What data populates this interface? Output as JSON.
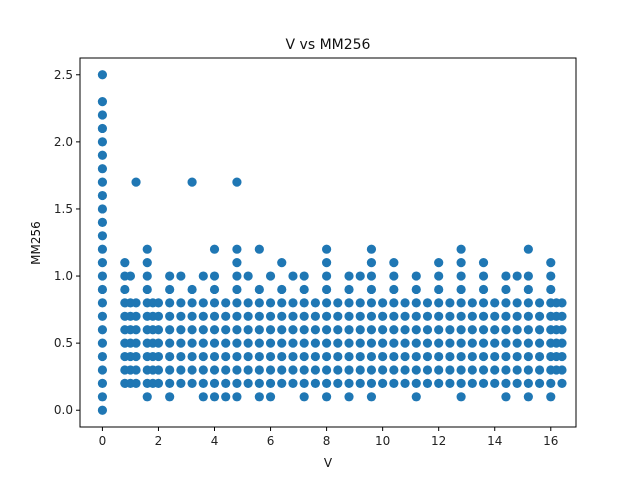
{
  "chart_data": {
    "type": "scatter",
    "title": "V vs MM256",
    "xlabel": "V",
    "ylabel": "MM256",
    "xlim": [
      -0.8,
      16.9
    ],
    "ylim": [
      -0.125,
      2.625
    ],
    "xticks": [
      0,
      2,
      4,
      6,
      8,
      10,
      12,
      14,
      16
    ],
    "xtick_labels": [
      "0",
      "2",
      "4",
      "6",
      "8",
      "10",
      "12",
      "14",
      "16"
    ],
    "yticks": [
      0.0,
      0.5,
      1.0,
      1.5,
      2.0,
      2.5
    ],
    "ytick_labels": [
      "0.0",
      "0.5",
      "1.0",
      "1.5",
      "2.0",
      "2.5"
    ],
    "grid": false,
    "marker_color": "#1f77b4",
    "x_grid_values": [
      0.8,
      1.0,
      1.2,
      1.6,
      1.8,
      2.0,
      2.4,
      2.8,
      3.2,
      3.6,
      4.0,
      4.4,
      4.8,
      5.2,
      5.6,
      6.0,
      6.4,
      6.8,
      7.2,
      7.6,
      8.0,
      8.4,
      8.8,
      9.2,
      9.6,
      10.0,
      10.4,
      10.8,
      11.2,
      11.6,
      12.0,
      12.4,
      12.8,
      13.2,
      13.6,
      14.0,
      14.4,
      14.8,
      15.2,
      15.6,
      16.0,
      16.4
    ],
    "x_grid_ymin": 0.2,
    "x_grid_ymax": 0.8,
    "x_grid_ystep": 0.1,
    "extra_points": [
      [
        0,
        0.0
      ],
      [
        0,
        0.1
      ],
      [
        0,
        0.2
      ],
      [
        0,
        0.3
      ],
      [
        0,
        0.4
      ],
      [
        0,
        0.5
      ],
      [
        0,
        0.6
      ],
      [
        0,
        0.7
      ],
      [
        0,
        0.8
      ],
      [
        0,
        0.9
      ],
      [
        0,
        1.0
      ],
      [
        0,
        1.1
      ],
      [
        0,
        1.2
      ],
      [
        0,
        1.3
      ],
      [
        0,
        1.4
      ],
      [
        0,
        1.5
      ],
      [
        0,
        1.6
      ],
      [
        0,
        1.7
      ],
      [
        0,
        1.8
      ],
      [
        0,
        1.9
      ],
      [
        0,
        2.0
      ],
      [
        0,
        2.1
      ],
      [
        0,
        2.2
      ],
      [
        0,
        2.3
      ],
      [
        0,
        2.5
      ],
      [
        1.2,
        1.7
      ],
      [
        3.2,
        1.7
      ],
      [
        4.8,
        1.7
      ],
      [
        0.8,
        1.0
      ],
      [
        0.8,
        1.1
      ],
      [
        1.0,
        1.0
      ],
      [
        1.6,
        1.0
      ],
      [
        1.6,
        1.1
      ],
      [
        1.6,
        1.2
      ],
      [
        2.4,
        1.0
      ],
      [
        2.8,
        1.0
      ],
      [
        3.6,
        1.0
      ],
      [
        4.0,
        1.0
      ],
      [
        4.0,
        1.2
      ],
      [
        4.8,
        1.0
      ],
      [
        4.8,
        1.1
      ],
      [
        4.8,
        1.2
      ],
      [
        5.2,
        1.0
      ],
      [
        5.6,
        1.2
      ],
      [
        6.0,
        1.0
      ],
      [
        6.4,
        1.1
      ],
      [
        6.8,
        1.0
      ],
      [
        7.2,
        1.0
      ],
      [
        8.0,
        1.0
      ],
      [
        8.0,
        1.1
      ],
      [
        8.0,
        1.2
      ],
      [
        8.8,
        1.0
      ],
      [
        9.2,
        1.0
      ],
      [
        9.6,
        1.0
      ],
      [
        9.6,
        1.1
      ],
      [
        9.6,
        1.2
      ],
      [
        10.4,
        1.0
      ],
      [
        10.4,
        1.1
      ],
      [
        11.2,
        1.0
      ],
      [
        12.0,
        1.0
      ],
      [
        12.0,
        1.1
      ],
      [
        12.8,
        1.0
      ],
      [
        12.8,
        1.1
      ],
      [
        12.8,
        1.2
      ],
      [
        13.6,
        1.0
      ],
      [
        13.6,
        1.1
      ],
      [
        14.4,
        1.0
      ],
      [
        14.8,
        1.0
      ],
      [
        15.2,
        1.0
      ],
      [
        15.2,
        1.2
      ],
      [
        16.0,
        1.0
      ],
      [
        16.0,
        1.1
      ],
      [
        0.8,
        0.9
      ],
      [
        1.6,
        0.9
      ],
      [
        2.4,
        0.9
      ],
      [
        3.2,
        0.9
      ],
      [
        4.0,
        0.9
      ],
      [
        4.8,
        0.9
      ],
      [
        5.6,
        0.9
      ],
      [
        6.4,
        0.9
      ],
      [
        7.2,
        0.9
      ],
      [
        8.0,
        0.9
      ],
      [
        8.8,
        0.9
      ],
      [
        9.6,
        0.9
      ],
      [
        10.4,
        0.9
      ],
      [
        11.2,
        0.9
      ],
      [
        12.0,
        0.9
      ],
      [
        12.8,
        0.9
      ],
      [
        13.6,
        0.9
      ],
      [
        14.4,
        0.9
      ],
      [
        15.2,
        0.9
      ],
      [
        16.0,
        0.9
      ],
      [
        1.6,
        0.1
      ],
      [
        2.4,
        0.1
      ],
      [
        3.6,
        0.1
      ],
      [
        4.0,
        0.1
      ],
      [
        4.4,
        0.1
      ],
      [
        4.8,
        0.1
      ],
      [
        5.6,
        0.1
      ],
      [
        6.0,
        0.1
      ],
      [
        7.2,
        0.1
      ],
      [
        8.0,
        0.1
      ],
      [
        8.8,
        0.1
      ],
      [
        9.6,
        0.1
      ],
      [
        11.2,
        0.1
      ],
      [
        12.8,
        0.1
      ],
      [
        14.4,
        0.1
      ],
      [
        15.2,
        0.1
      ],
      [
        16.0,
        0.1
      ],
      [
        16.2,
        0.3
      ],
      [
        16.2,
        0.4
      ],
      [
        16.2,
        0.5
      ],
      [
        16.2,
        0.6
      ],
      [
        16.2,
        0.7
      ],
      [
        16.2,
        0.8
      ]
    ]
  }
}
